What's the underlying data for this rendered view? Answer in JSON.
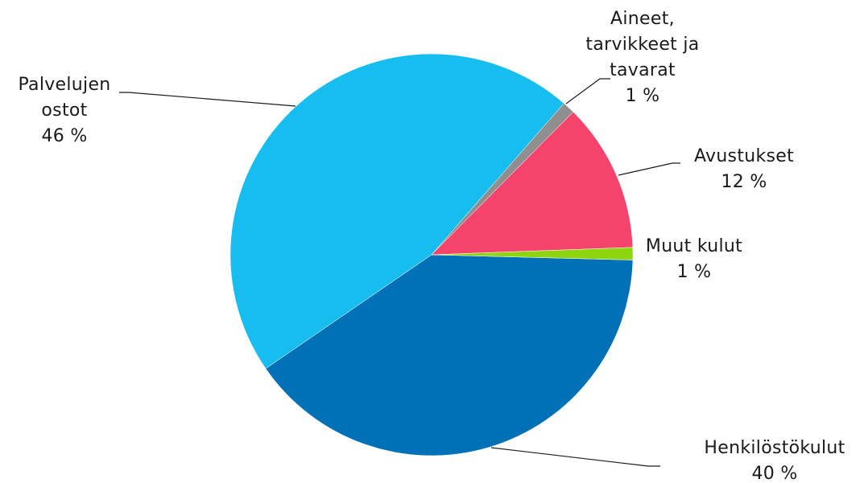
{
  "chart_data": {
    "type": "pie",
    "slices": [
      {
        "label_lines": [
          "Henkilöstökulut"
        ],
        "pct_label": "40 %",
        "value": 40,
        "color": "#0071b7"
      },
      {
        "label_lines": [
          "Palvelujen",
          "ostot"
        ],
        "pct_label": "46 %",
        "value": 46,
        "color": "#16bdee"
      },
      {
        "label_lines": [
          "Aineet,",
          "tarvikkeet ja",
          "tavarat"
        ],
        "pct_label": "1 %",
        "value": 1,
        "color": "#8f8f8f"
      },
      {
        "label_lines": [
          "Avustukset"
        ],
        "pct_label": "12 %",
        "value": 12,
        "color": "#f5436c"
      },
      {
        "label_lines": [
          "Muut kulut"
        ],
        "pct_label": "1 %",
        "value": 1,
        "color": "#8ed50f"
      }
    ]
  }
}
